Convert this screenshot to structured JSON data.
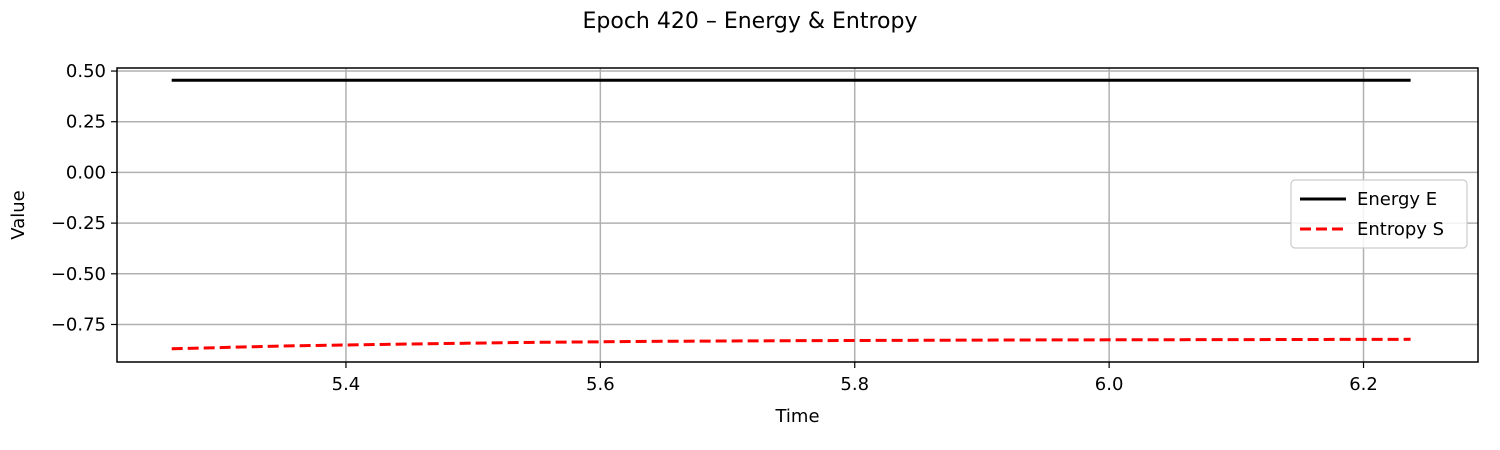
{
  "chart_data": {
    "type": "line",
    "title": "Epoch 420 – Energy & Entropy",
    "xlabel": "Time",
    "ylabel": "Value",
    "xlim": [
      5.22,
      6.29
    ],
    "ylim": [
      -0.935,
      0.515
    ],
    "xticks": [
      5.4,
      5.6,
      5.8,
      6.0,
      6.2
    ],
    "xtick_labels": [
      "5.4",
      "5.6",
      "5.8",
      "6.0",
      "6.2"
    ],
    "yticks": [
      0.5,
      0.25,
      0.0,
      -0.25,
      -0.5,
      -0.75
    ],
    "ytick_labels": [
      "0.50",
      "0.25",
      "0.00",
      "−0.25",
      "−0.50",
      "−0.75"
    ],
    "grid": true,
    "legend_position": "center-right",
    "series": [
      {
        "name": "Energy E",
        "color": "#000000",
        "style": "solid",
        "x": [
          5.263,
          5.4,
          5.6,
          5.8,
          6.0,
          6.2,
          6.237
        ],
        "y": [
          0.455,
          0.455,
          0.455,
          0.455,
          0.455,
          0.455,
          0.455
        ]
      },
      {
        "name": "Entropy S",
        "color": "#ff0000",
        "style": "dashed",
        "x": [
          5.263,
          5.35,
          5.45,
          5.55,
          5.65,
          5.75,
          5.85,
          5.95,
          6.05,
          6.15,
          6.237
        ],
        "y": [
          -0.87,
          -0.856,
          -0.846,
          -0.838,
          -0.833,
          -0.83,
          -0.828,
          -0.826,
          -0.825,
          -0.824,
          -0.823
        ]
      }
    ]
  }
}
